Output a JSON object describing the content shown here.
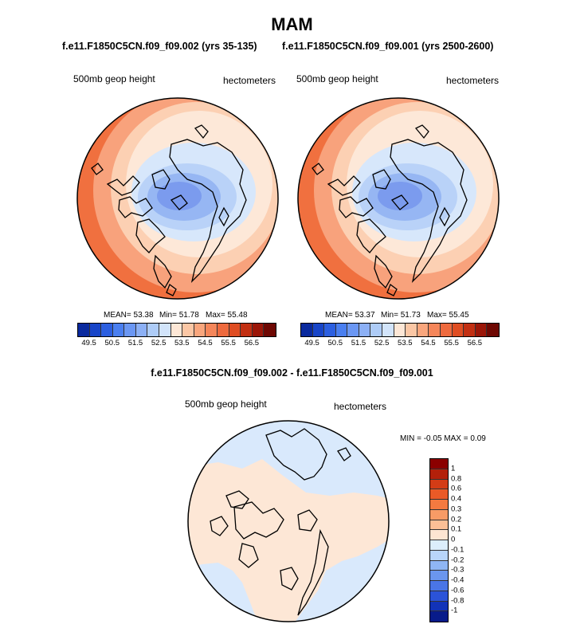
{
  "title": "MAM",
  "panels": [
    {
      "case": "f.e11.F1850C5CN.f09_f09.002 (yrs 35-135)",
      "variable": "500mb geop height",
      "units": "hectometers",
      "stats": {
        "mean": "MEAN=  53.38",
        "min": "Min=  51.78",
        "max": "Max=  55.48"
      }
    },
    {
      "case": "f.e11.F1850C5CN.f09_f09.001 (yrs 2500-2600)",
      "variable": "500mb geop height",
      "units": "hectometers",
      "stats": {
        "mean": "MEAN=  53.37",
        "min": "Min=  51.73",
        "max": "Max=  55.45"
      }
    }
  ],
  "field_colorbar": {
    "colors": [
      "#0a2a9e",
      "#1845c8",
      "#2c5fe0",
      "#4a7ff0",
      "#6b97f3",
      "#8cb0f5",
      "#aeccf7",
      "#d2e4fa",
      "#fde7d6",
      "#fbc7a5",
      "#f9a67d",
      "#f5865a",
      "#ee6a3e",
      "#df4d22",
      "#c22f12",
      "#9b1608",
      "#6e0803"
    ],
    "ticks": [
      "49.5",
      "50",
      "50.5",
      "51",
      "51.5",
      "52",
      "52.5",
      "53",
      "53.5",
      "54",
      "54.5",
      "55",
      "55.5",
      "56",
      "56.5"
    ],
    "labeled_ticks": [
      "49.5",
      "50.5",
      "51.5",
      "52.5",
      "53.5",
      "54.5",
      "55.5",
      "56.5"
    ]
  },
  "diff_panel": {
    "title": "f.e11.F1850C5CN.f09_f09.002 - f.e11.F1850C5CN.f09_f09.001",
    "variable": "500mb geop height",
    "units": "hectometers",
    "minmax": "MIN =  -0.05 MAX =   0.09",
    "colorbar": {
      "colors": [
        "#8b0000",
        "#b3200a",
        "#d33c16",
        "#ea5a27",
        "#f47a40",
        "#f89b66",
        "#fbbf96",
        "#fde5d2",
        "#dceefc",
        "#b8d5fa",
        "#8fb6f4",
        "#6b96ee",
        "#4a75e6",
        "#2b53d8",
        "#1233b8",
        "#081b8a"
      ],
      "labels": [
        "1",
        "0.8",
        "0.6",
        "0.4",
        "0.3",
        "0.2",
        "0.1",
        "0",
        "-0.1",
        "-0.2",
        "-0.3",
        "-0.4",
        "-0.6",
        "-0.8",
        "-1"
      ]
    }
  },
  "map_colors": {
    "field": [
      "#d94820",
      "#f0703f",
      "#f8a27c",
      "#fcd0b3",
      "#fde8d8",
      "#d7e7fb",
      "#b9d2f8",
      "#96b6f3",
      "#7b9bee"
    ],
    "diff_positive": "#fde7d6",
    "diff_negative": "#d9e9fc"
  }
}
